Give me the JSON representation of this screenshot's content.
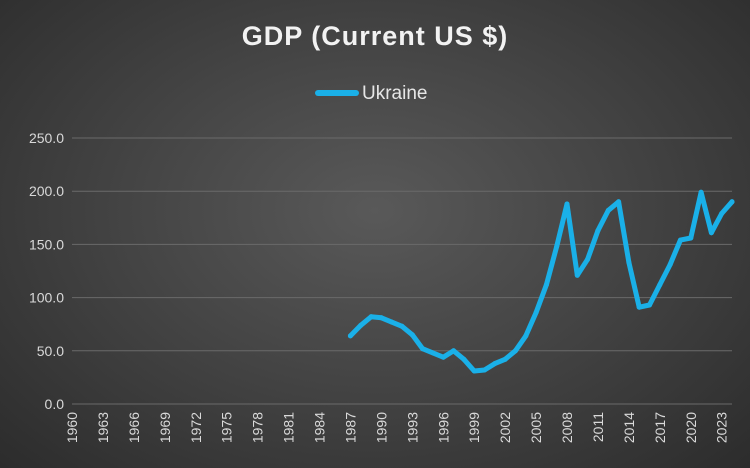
{
  "chart_data": {
    "type": "line",
    "title": "GDP (Current US $)",
    "xlabel": "",
    "ylabel": "",
    "legend_position": "top-center",
    "grid": true,
    "ylim": [
      0,
      250
    ],
    "yticks": [
      "0.0",
      "50.0",
      "100.0",
      "150.0",
      "200.0",
      "250.0"
    ],
    "xlim": [
      1960,
      2024
    ],
    "xticks": [
      "1960",
      "1963",
      "1966",
      "1969",
      "1972",
      "1975",
      "1978",
      "1981",
      "1984",
      "1987",
      "1990",
      "1993",
      "1996",
      "1999",
      "2002",
      "2005",
      "2008",
      "2011",
      "2014",
      "2017",
      "2020",
      "2023"
    ],
    "colors": {
      "series": "#1ab0e8",
      "background": "#454545",
      "grid": "#6a6a6a",
      "text": "#d9d9d9"
    },
    "series": [
      {
        "name": "Ukraine",
        "x": [
          1987,
          1988,
          1989,
          1990,
          1991,
          1992,
          1993,
          1994,
          1995,
          1996,
          1997,
          1998,
          1999,
          2000,
          2001,
          2002,
          2003,
          2004,
          2005,
          2006,
          2007,
          2008,
          2009,
          2010,
          2011,
          2012,
          2013,
          2014,
          2015,
          2016,
          2017,
          2018,
          2019,
          2020,
          2021,
          2022,
          2023,
          2024
        ],
        "values": [
          64,
          74,
          82,
          81,
          77,
          73,
          65,
          52,
          48,
          44,
          50,
          42,
          31,
          32,
          38,
          42,
          50,
          64,
          86,
          112,
          148,
          188,
          121,
          136,
          163,
          182,
          190,
          133,
          91,
          93,
          112,
          131,
          154,
          156,
          199,
          161,
          179,
          190
        ]
      }
    ]
  }
}
